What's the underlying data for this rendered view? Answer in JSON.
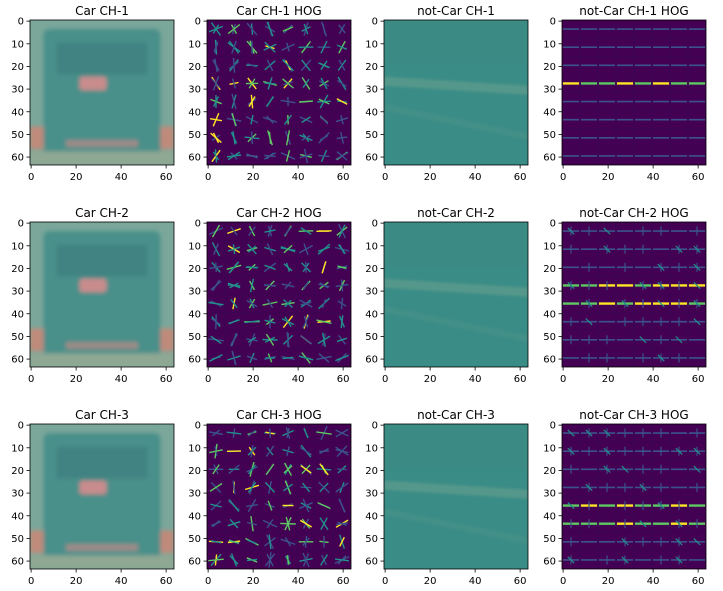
{
  "figure": {
    "rows": 3,
    "cols": 4,
    "image_size": 64
  },
  "colors": {
    "car_body": "#4a8f8a",
    "car_bg": "#7aa79a",
    "car_taillight": "#c98c8c",
    "car_edge": "#c08a7a",
    "road": "#3a8c86",
    "hog_bg": "#440154",
    "hog_low": "#3b528b",
    "hog_mid": "#21918c",
    "hog_high": "#5ec962",
    "hog_peak": "#fde725"
  },
  "chart_data": [
    {
      "type": "heatmap",
      "kind": "car",
      "title": "Car CH-1",
      "x_ticks": [
        0,
        20,
        40,
        60
      ],
      "y_ticks": [
        0,
        10,
        20,
        30,
        40,
        50,
        60
      ],
      "xlim": [
        0,
        63
      ],
      "ylim": [
        63,
        0
      ]
    },
    {
      "type": "heatmap",
      "kind": "car-hog",
      "title": "Car CH-1 HOG",
      "x_ticks": [
        0,
        20,
        40,
        60
      ],
      "y_ticks": [
        0,
        10,
        20,
        30,
        40,
        50,
        60
      ],
      "xlim": [
        0,
        63
      ],
      "ylim": [
        63,
        0
      ]
    },
    {
      "type": "heatmap",
      "kind": "road",
      "title": "not-Car CH-1",
      "x_ticks": [
        0,
        20,
        40,
        60
      ],
      "y_ticks": [
        0,
        10,
        20,
        30,
        40,
        50,
        60
      ],
      "xlim": [
        0,
        63
      ],
      "ylim": [
        63,
        0
      ]
    },
    {
      "type": "heatmap",
      "kind": "road-hog",
      "title": "not-Car CH-1 HOG",
      "x_ticks": [
        0,
        20,
        40,
        60
      ],
      "y_ticks": [
        0,
        10,
        20,
        30,
        40,
        50,
        60
      ],
      "xlim": [
        0,
        63
      ],
      "ylim": [
        63,
        0
      ]
    },
    {
      "type": "heatmap",
      "kind": "car",
      "title": "Car CH-2",
      "x_ticks": [
        0,
        20,
        40,
        60
      ],
      "y_ticks": [
        0,
        10,
        20,
        30,
        40,
        50,
        60
      ],
      "xlim": [
        0,
        63
      ],
      "ylim": [
        63,
        0
      ]
    },
    {
      "type": "heatmap",
      "kind": "car-hog",
      "title": "Car CH-2 HOG",
      "x_ticks": [
        0,
        20,
        40,
        60
      ],
      "y_ticks": [
        0,
        10,
        20,
        30,
        40,
        50,
        60
      ],
      "xlim": [
        0,
        63
      ],
      "ylim": [
        63,
        0
      ]
    },
    {
      "type": "heatmap",
      "kind": "road",
      "title": "not-Car CH-2",
      "x_ticks": [
        0,
        20,
        40,
        60
      ],
      "y_ticks": [
        0,
        10,
        20,
        30,
        40,
        50,
        60
      ],
      "xlim": [
        0,
        63
      ],
      "ylim": [
        63,
        0
      ]
    },
    {
      "type": "heatmap",
      "kind": "road-hog",
      "title": "not-Car CH-2 HOG",
      "x_ticks": [
        0,
        20,
        40,
        60
      ],
      "y_ticks": [
        0,
        10,
        20,
        30,
        40,
        50,
        60
      ],
      "xlim": [
        0,
        63
      ],
      "ylim": [
        63,
        0
      ]
    },
    {
      "type": "heatmap",
      "kind": "car",
      "title": "Car CH-3",
      "x_ticks": [
        0,
        20,
        40,
        60
      ],
      "y_ticks": [
        0,
        10,
        20,
        30,
        40,
        50,
        60
      ],
      "xlim": [
        0,
        63
      ],
      "ylim": [
        63,
        0
      ]
    },
    {
      "type": "heatmap",
      "kind": "car-hog",
      "title": "Car CH-3 HOG",
      "x_ticks": [
        0,
        20,
        40,
        60
      ],
      "y_ticks": [
        0,
        10,
        20,
        30,
        40,
        50,
        60
      ],
      "xlim": [
        0,
        63
      ],
      "ylim": [
        63,
        0
      ]
    },
    {
      "type": "heatmap",
      "kind": "road",
      "title": "not-Car CH-3",
      "x_ticks": [
        0,
        20,
        40,
        60
      ],
      "y_ticks": [
        0,
        10,
        20,
        30,
        40,
        50,
        60
      ],
      "xlim": [
        0,
        63
      ],
      "ylim": [
        63,
        0
      ]
    },
    {
      "type": "heatmap",
      "kind": "road-hog",
      "title": "not-Car CH-3 HOG",
      "x_ticks": [
        0,
        20,
        40,
        60
      ],
      "y_ticks": [
        0,
        10,
        20,
        30,
        40,
        50,
        60
      ],
      "xlim": [
        0,
        63
      ],
      "ylim": [
        63,
        0
      ]
    }
  ]
}
